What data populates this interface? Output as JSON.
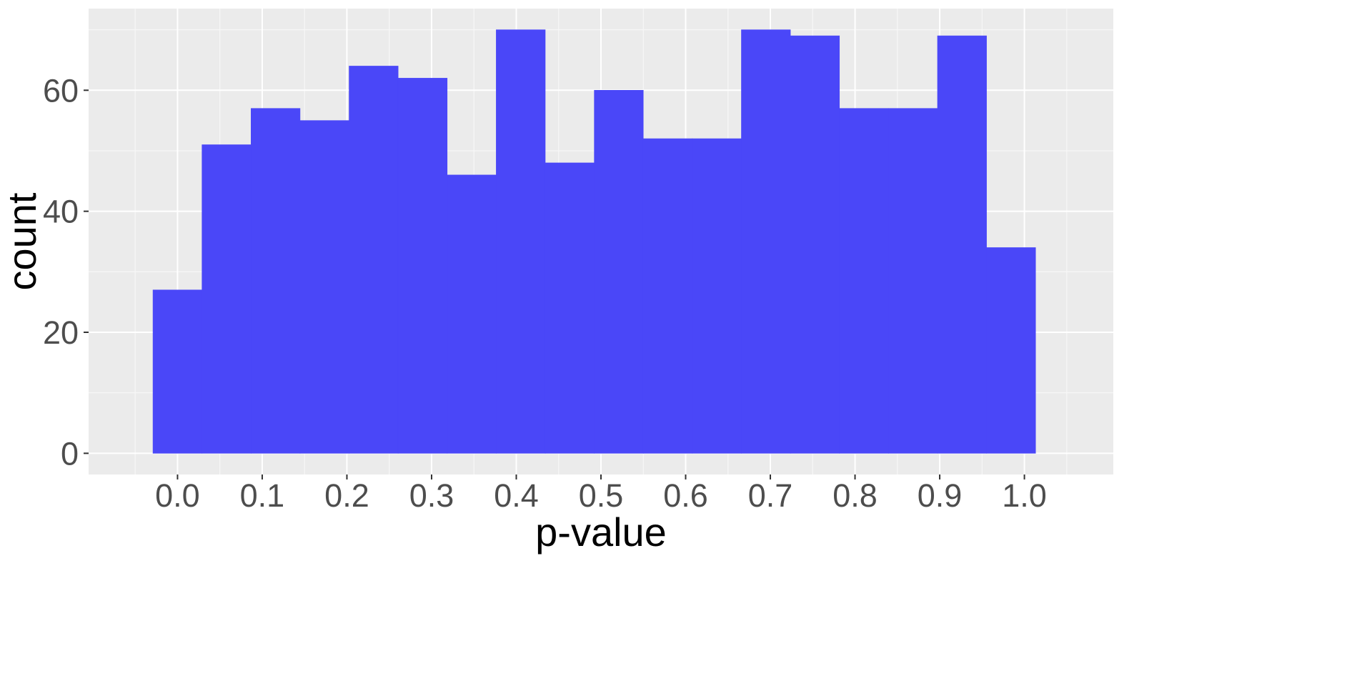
{
  "chart_data": {
    "type": "bar",
    "title": "",
    "xlabel": "p-value",
    "ylabel": "count",
    "bin_width": 0.0579,
    "bins": [
      {
        "x0": -0.029,
        "x1": 0.0289,
        "count": 27
      },
      {
        "x0": 0.0289,
        "x1": 0.0868,
        "count": 51
      },
      {
        "x0": 0.0868,
        "x1": 0.1447,
        "count": 57
      },
      {
        "x0": 0.1447,
        "x1": 0.2026,
        "count": 55
      },
      {
        "x0": 0.2026,
        "x1": 0.2605,
        "count": 64
      },
      {
        "x0": 0.2605,
        "x1": 0.3184,
        "count": 62
      },
      {
        "x0": 0.3184,
        "x1": 0.3763,
        "count": 46
      },
      {
        "x0": 0.3763,
        "x1": 0.4342,
        "count": 70
      },
      {
        "x0": 0.4342,
        "x1": 0.4921,
        "count": 48
      },
      {
        "x0": 0.4921,
        "x1": 0.55,
        "count": 60
      },
      {
        "x0": 0.55,
        "x1": 0.6079,
        "count": 52
      },
      {
        "x0": 0.6079,
        "x1": 0.6658,
        "count": 52
      },
      {
        "x0": 0.6658,
        "x1": 0.7237,
        "count": 70
      },
      {
        "x0": 0.7237,
        "x1": 0.7816,
        "count": 69
      },
      {
        "x0": 0.7816,
        "x1": 0.8395,
        "count": 57
      },
      {
        "x0": 0.8395,
        "x1": 0.8974,
        "count": 57
      },
      {
        "x0": 0.8974,
        "x1": 0.9553,
        "count": 69
      },
      {
        "x0": 0.9553,
        "x1": 1.0132,
        "count": 34
      }
    ],
    "xlim": [
      -0.105,
      1.105
    ],
    "ylim": [
      -3.5,
      73.5
    ],
    "x_ticks": [
      0.0,
      0.1,
      0.2,
      0.3,
      0.4,
      0.5,
      0.6,
      0.7,
      0.8,
      0.9,
      1.0
    ],
    "x_tick_labels": [
      "0.0",
      "0.1",
      "0.2",
      "0.3",
      "0.4",
      "0.5",
      "0.6",
      "0.7",
      "0.8",
      "0.9",
      "1.0"
    ],
    "y_ticks": [
      0,
      20,
      40,
      60
    ],
    "y_tick_labels": [
      "0",
      "20",
      "40",
      "60"
    ],
    "grid": true,
    "legend": "none",
    "colors": {
      "bar_fill": "#4a47f8",
      "panel_background": "#ebebeb",
      "grid_major": "#ffffff",
      "grid_minor": "#f7f7f7",
      "tick_text": "#4d4d4d",
      "axis_title_text": "#000000"
    }
  }
}
